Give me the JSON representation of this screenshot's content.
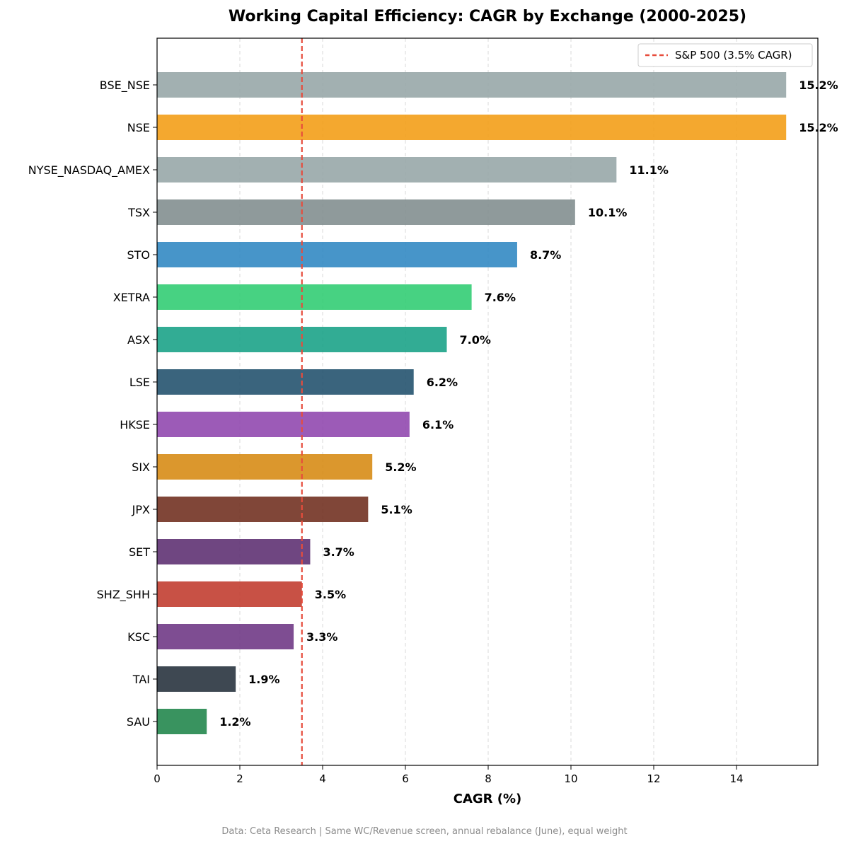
{
  "chart_data": {
    "type": "bar",
    "orientation": "horizontal",
    "title": "Working Capital Efficiency: CAGR by Exchange (2000-2025)",
    "xlabel": "CAGR (%)",
    "ylabel": "",
    "xlim": [
      0,
      16
    ],
    "xticks": [
      0,
      2,
      4,
      6,
      8,
      10,
      12,
      14
    ],
    "grid": "x, dashed",
    "categories": [
      "BSE_NSE",
      "NSE",
      "NYSE_NASDAQ_AMEX",
      "TSX",
      "STO",
      "XETRA",
      "ASX",
      "LSE",
      "HKSE",
      "SIX",
      "JPX",
      "SET",
      "SHZ_SHH",
      "KSC",
      "TAI",
      "SAU"
    ],
    "values": [
      15.2,
      15.2,
      11.1,
      10.1,
      8.7,
      7.6,
      7.0,
      6.2,
      6.1,
      5.2,
      5.1,
      3.7,
      3.5,
      3.3,
      1.9,
      1.2
    ],
    "value_labels": [
      "15.2%",
      "15.2%",
      "11.1%",
      "10.1%",
      "8.7%",
      "7.6%",
      "7.0%",
      "6.2%",
      "6.1%",
      "5.2%",
      "5.1%",
      "3.7%",
      "3.5%",
      "3.3%",
      "1.9%",
      "1.2%"
    ],
    "colors": [
      "#95a5a6",
      "#f39c12",
      "#95a5a6",
      "#7f8c8d",
      "#2e86c1",
      "#2ecc71",
      "#16a085",
      "#1f4e6b",
      "#8e44ad",
      "#d68910",
      "#6e2c1c",
      "#5b2c6f",
      "#c0392b",
      "#6c3483",
      "#232f3a",
      "#1e8449"
    ],
    "reference_line": {
      "value": 3.5,
      "label": "S&P 500 (3.5% CAGR)",
      "color": "#e74c3c",
      "style": "dashed"
    },
    "legend_position": "top-right"
  },
  "footnote": "Data: Ceta Research | Same WC/Revenue screen, annual rebalance (June), equal weight"
}
